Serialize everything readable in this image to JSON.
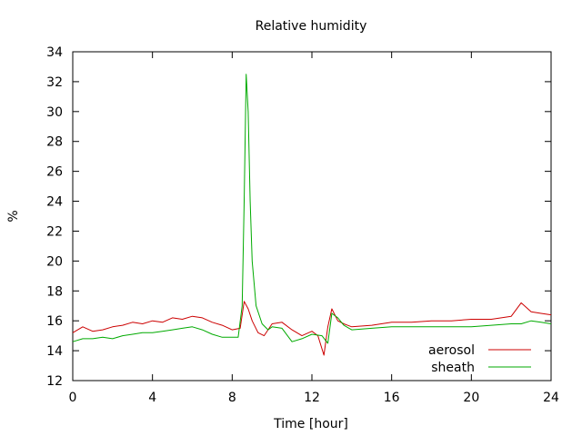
{
  "chart_data": {
    "type": "line",
    "title": "Relative humidity",
    "xlabel": "Time [hour]",
    "ylabel": "%",
    "xlim": [
      0,
      24
    ],
    "ylim": [
      12,
      34
    ],
    "xticks": [
      0,
      4,
      8,
      12,
      16,
      20,
      24
    ],
    "yticks": [
      12,
      14,
      16,
      18,
      20,
      22,
      24,
      26,
      28,
      30,
      32,
      34
    ],
    "grid": false,
    "legend_position": "bottom-right",
    "series": [
      {
        "name": "aerosol",
        "color": "#cc0000",
        "x": [
          0,
          0.5,
          1,
          1.5,
          2,
          2.5,
          3,
          3.5,
          4,
          4.5,
          5,
          5.5,
          6,
          6.5,
          7,
          7.5,
          8,
          8.4,
          8.6,
          8.8,
          9,
          9.3,
          9.6,
          10,
          10.5,
          11,
          11.5,
          12,
          12.3,
          12.6,
          12.8,
          13,
          13.3,
          13.6,
          14,
          15,
          16,
          17,
          18,
          19,
          20,
          21,
          22,
          22.5,
          23,
          23.5,
          24
        ],
        "y": [
          15.2,
          15.6,
          15.3,
          15.4,
          15.6,
          15.7,
          15.9,
          15.8,
          16.0,
          15.9,
          16.2,
          16.1,
          16.3,
          16.2,
          15.9,
          15.7,
          15.4,
          15.5,
          17.3,
          16.8,
          16.0,
          15.2,
          15.0,
          15.8,
          15.9,
          15.4,
          15.0,
          15.3,
          15.0,
          13.7,
          15.6,
          16.8,
          16.0,
          15.8,
          15.6,
          15.7,
          15.9,
          15.9,
          16.0,
          16.0,
          16.1,
          16.1,
          16.3,
          17.2,
          16.6,
          16.5,
          16.4
        ]
      },
      {
        "name": "sheath",
        "color": "#00aa00",
        "x": [
          0,
          0.5,
          1,
          1.5,
          2,
          2.5,
          3,
          3.5,
          4,
          4.5,
          5,
          5.5,
          6,
          6.5,
          7,
          7.5,
          8,
          8.3,
          8.5,
          8.6,
          8.7,
          8.8,
          8.9,
          9.0,
          9.2,
          9.5,
          9.8,
          10,
          10.5,
          11,
          11.5,
          12,
          12.5,
          12.8,
          13,
          13.3,
          13.6,
          14,
          15,
          16,
          17,
          18,
          19,
          20,
          21,
          22,
          22.5,
          23,
          23.5,
          24
        ],
        "y": [
          14.6,
          14.8,
          14.8,
          14.9,
          14.8,
          15.0,
          15.1,
          15.2,
          15.2,
          15.3,
          15.4,
          15.5,
          15.6,
          15.4,
          15.1,
          14.9,
          14.9,
          14.9,
          17.0,
          24.0,
          32.5,
          30.0,
          24.0,
          20.0,
          17.0,
          15.8,
          15.4,
          15.6,
          15.5,
          14.6,
          14.8,
          15.1,
          15.0,
          14.5,
          16.5,
          16.2,
          15.7,
          15.4,
          15.5,
          15.6,
          15.6,
          15.6,
          15.6,
          15.6,
          15.7,
          15.8,
          15.8,
          16.0,
          15.9,
          15.8
        ]
      }
    ]
  }
}
